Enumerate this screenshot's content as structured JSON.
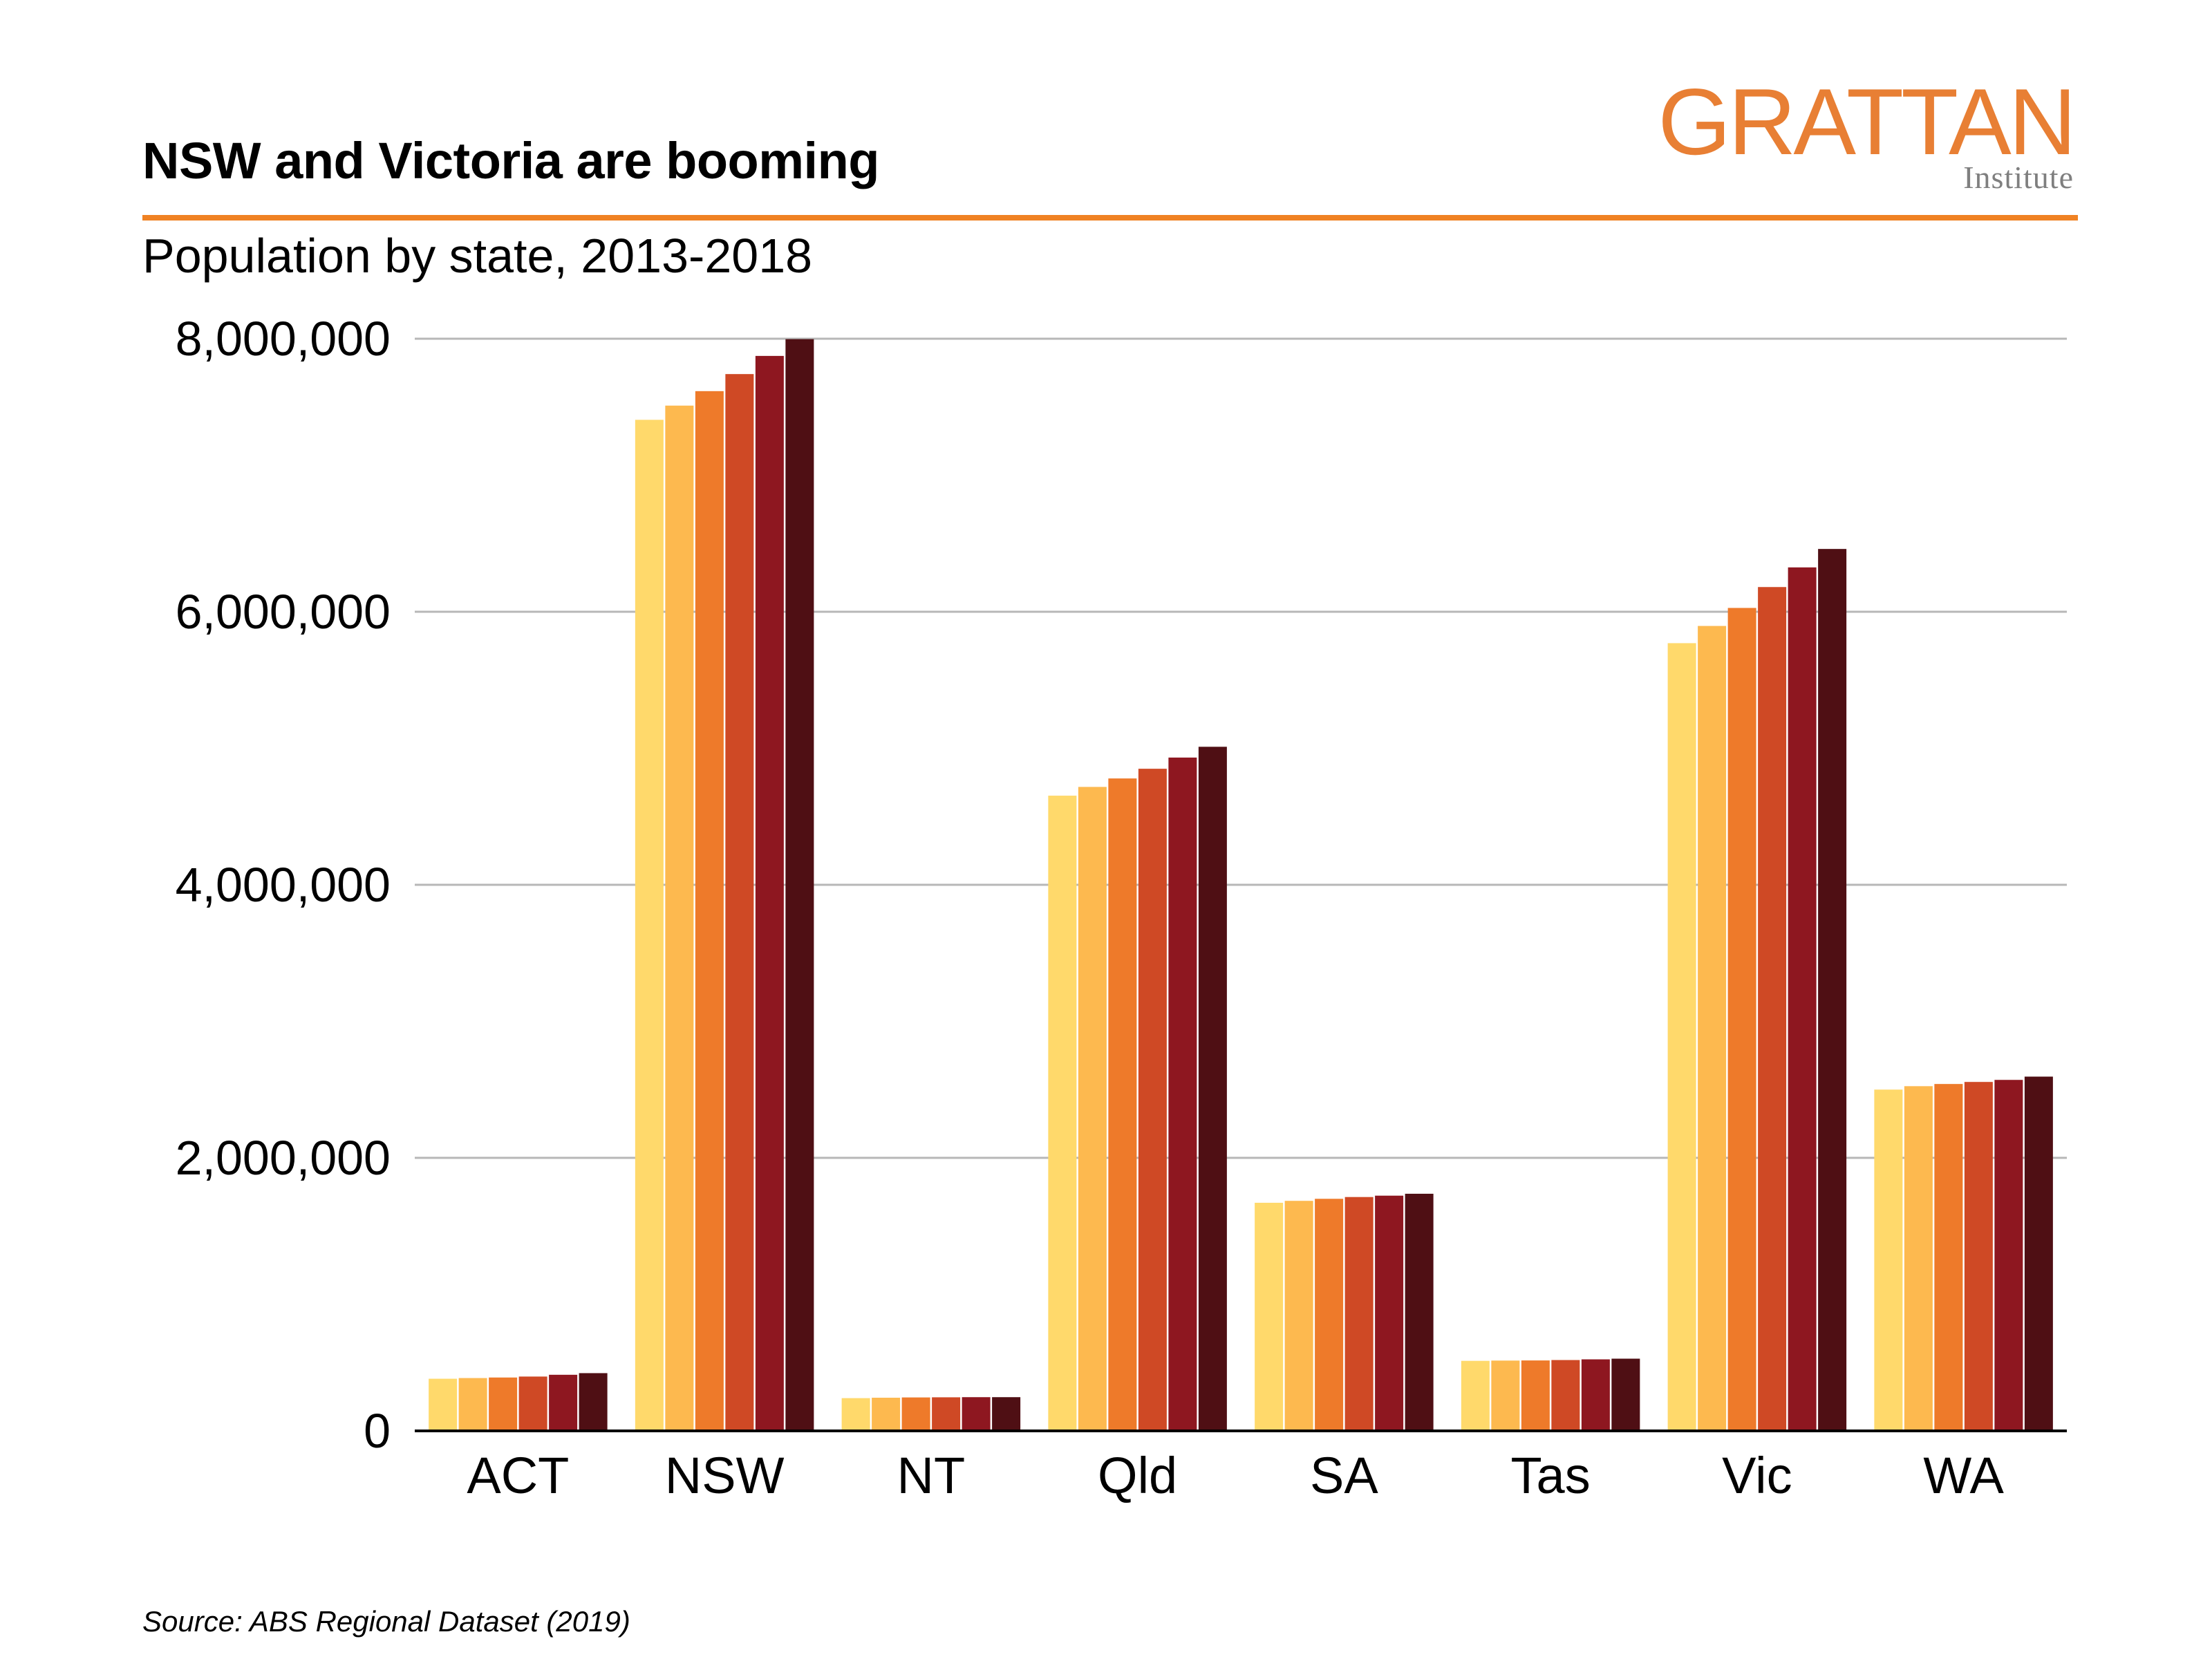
{
  "title": "NSW and Victoria are booming",
  "subtitle": "Population by state, 2013-2018",
  "logo": {
    "main": "GRATTAN",
    "sub": "Institute"
  },
  "source": "Source: ABS Regional Dataset (2019)",
  "colors": {
    "accent": "#F08223",
    "series": [
      "#FFD96B",
      "#FDB94F",
      "#EE7A2A",
      "#CF4925",
      "#8E1720",
      "#4F0F14"
    ],
    "gridline": "#b7b7b7",
    "axis": "#000000"
  },
  "chart_data": {
    "type": "bar",
    "categories": [
      "ACT",
      "NSW",
      "NT",
      "Qld",
      "SA",
      "Tas",
      "Vic",
      "WA"
    ],
    "series": [
      {
        "values": [
          382000,
          7406000,
          240000,
          4653000,
          1671000,
          513000,
          5770000,
          2500000
        ]
      },
      {
        "values": [
          387000,
          7510000,
          243000,
          4717000,
          1685000,
          515000,
          5896000,
          2525000
        ]
      },
      {
        "values": [
          391000,
          7616000,
          245000,
          4779000,
          1700000,
          516000,
          6028000,
          2541000
        ]
      },
      {
        "values": [
          398000,
          7741000,
          246000,
          4850000,
          1713000,
          519000,
          6181000,
          2556000
        ]
      },
      {
        "values": [
          411000,
          7874000,
          247000,
          4932000,
          1723000,
          524000,
          6325000,
          2571000
        ]
      },
      {
        "values": [
          423000,
          7997000,
          247000,
          5011000,
          1737000,
          529000,
          6460000,
          2595000
        ]
      }
    ],
    "yticks": [
      "0",
      "2,000,000",
      "4,000,000",
      "6,000,000",
      "8,000,000"
    ],
    "ytick_values": [
      0,
      2000000,
      4000000,
      6000000,
      8000000
    ],
    "ylim": [
      0,
      8000000
    ],
    "grid": true,
    "legend": "none"
  }
}
